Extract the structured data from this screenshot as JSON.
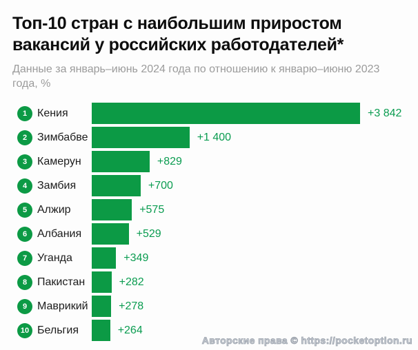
{
  "header": {
    "title": "Топ-10 стран с наибольшим приростом\nвакансий у российских работодателей*",
    "subtitle": "Данные за январь–июнь 2024 года по отношению к январю–июню 2023\nгода, %"
  },
  "chart_data": {
    "type": "bar",
    "orientation": "horizontal",
    "title": "Топ-10 стран с наибольшим приростом вакансий у российских работодателей*",
    "subtitle": "Данные за январь–июнь 2024 года по отношению к январю–июню 2023 года, %",
    "categories": [
      "Кения",
      "Зимбабве",
      "Камерун",
      "Замбия",
      "Алжир",
      "Албания",
      "Уганда",
      "Пакистан",
      "Маврикий",
      "Бельгия"
    ],
    "values": [
      3842,
      1400,
      829,
      700,
      575,
      529,
      349,
      282,
      278,
      264
    ],
    "value_labels": [
      "+3 842",
      "+1 400",
      "+829",
      "+700",
      "+575",
      "+529",
      "+349",
      "+282",
      "+278",
      "+264"
    ],
    "ranks": [
      "1",
      "2",
      "3",
      "4",
      "5",
      "6",
      "7",
      "8",
      "9",
      "10"
    ],
    "xlim": [
      0,
      3842
    ],
    "grid": false,
    "legend": false,
    "bar_color": "#0c9a45",
    "value_color": "#0a9c50"
  },
  "footer": {
    "copyright": "Авторские права © https://pocketoption.ru"
  }
}
